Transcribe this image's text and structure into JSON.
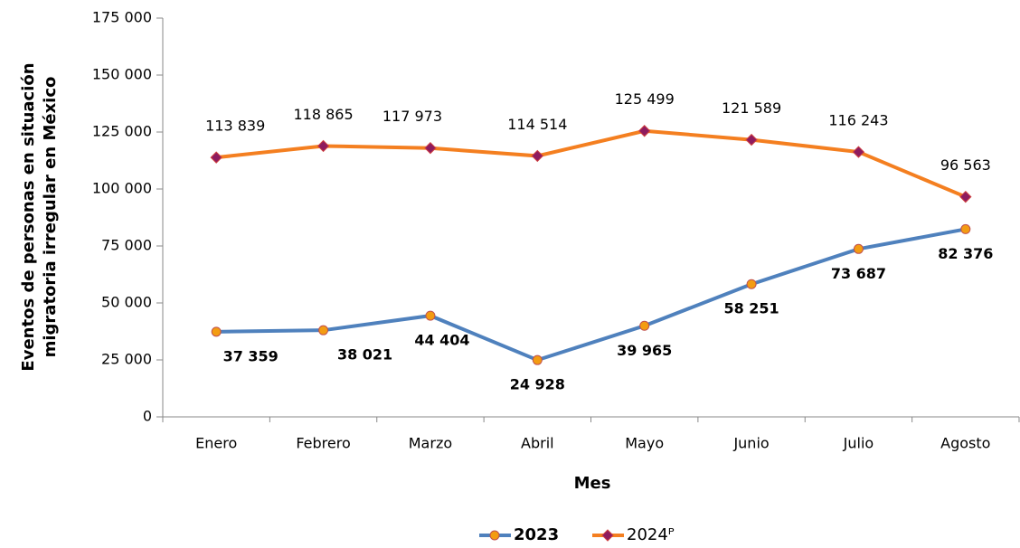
{
  "chart_data": {
    "type": "line",
    "y_label": [
      "Eventos de personas en situación",
      "migratoria irregular en México"
    ],
    "x_label": "Mes",
    "categories": [
      "Enero",
      "Febrero",
      "Marzo",
      "Abril",
      "Mayo",
      "Junio",
      "Julio",
      "Agosto"
    ],
    "series": [
      {
        "name": "2023",
        "color": "#4f81bd",
        "marker": "circle",
        "marker_color": "#f39c12",
        "values": [
          37359,
          38021,
          44404,
          24928,
          39965,
          58251,
          73687,
          82376
        ],
        "value_labels": [
          "37 359",
          "38 021",
          "44 404",
          "24 928",
          "39 965",
          "58 251",
          "73 687",
          "82 376"
        ]
      },
      {
        "name": "2024ᴾ",
        "color": "#f47f20",
        "marker": "diamond",
        "marker_color": "#8e1b5e",
        "values": [
          113839,
          118865,
          117973,
          114514,
          125499,
          121589,
          116243,
          96563
        ],
        "value_labels": [
          "113 839",
          "118 865",
          "117 973",
          "114 514",
          "125 499",
          "121 589",
          "116 243",
          "96 563"
        ]
      }
    ],
    "ylim": [
      0,
      175000
    ],
    "yticks": [
      0,
      {
        "value": 25000,
        "label": "25 000"
      },
      {
        "value": 50000,
        "label": "50 000"
      },
      {
        "value": 75000,
        "label": "75 000"
      },
      {
        "value": 100000,
        "label": "100 000"
      },
      {
        "value": 125000,
        "label": "125 000"
      },
      {
        "value": 150000,
        "label": "150 000"
      },
      {
        "value": 175000,
        "label": "175 000"
      }
    ],
    "legend": "bottom"
  }
}
